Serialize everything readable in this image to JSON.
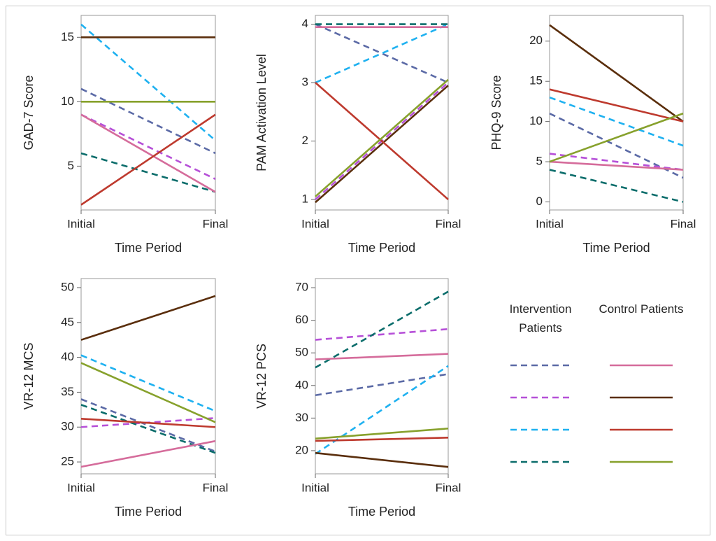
{
  "chart_data": [
    {
      "type": "line",
      "ylabel": "GAD-7 Score",
      "xlabel": "Time Period",
      "categories": [
        "Initial",
        "Final"
      ],
      "ylim": [
        1.6,
        16.7
      ],
      "yticks": [
        5,
        10,
        15
      ],
      "series": [
        {
          "color": "#5b6aa6",
          "dashed": true,
          "values": [
            11,
            6
          ]
        },
        {
          "color": "#b650d8",
          "dashed": true,
          "values": [
            9,
            4
          ]
        },
        {
          "color": "#1fb1f0",
          "dashed": true,
          "values": [
            16,
            7
          ]
        },
        {
          "color": "#0b6d6b",
          "dashed": true,
          "values": [
            6,
            3
          ]
        },
        {
          "color": "#d56c9b",
          "dashed": false,
          "values": [
            9,
            3
          ]
        },
        {
          "color": "#5a2e0c",
          "dashed": false,
          "values": [
            15,
            15
          ]
        },
        {
          "color": "#be3a2e",
          "dashed": false,
          "values": [
            2,
            9
          ]
        },
        {
          "color": "#87a12c",
          "dashed": false,
          "values": [
            10,
            10
          ]
        }
      ]
    },
    {
      "type": "line",
      "ylabel": "PAM Activation Level",
      "xlabel": "Time Period",
      "categories": [
        "Initial",
        "Final"
      ],
      "ylim": [
        0.82,
        4.15
      ],
      "yticks": [
        1,
        2,
        3,
        4
      ],
      "series": [
        {
          "color": "#5b6aa6",
          "dashed": true,
          "values": [
            4,
            3
          ]
        },
        {
          "color": "#b650d8",
          "dashed": true,
          "values": [
            1,
            3
          ]
        },
        {
          "color": "#1fb1f0",
          "dashed": true,
          "values": [
            3,
            4
          ]
        },
        {
          "color": "#0b6d6b",
          "dashed": true,
          "values": [
            4,
            4
          ]
        },
        {
          "color": "#d56c9b",
          "dashed": false,
          "values": [
            3.95,
            3.95
          ]
        },
        {
          "color": "#5a2e0c",
          "dashed": false,
          "values": [
            0.95,
            2.95
          ]
        },
        {
          "color": "#be3a2e",
          "dashed": false,
          "values": [
            3,
            1
          ]
        },
        {
          "color": "#87a12c",
          "dashed": false,
          "values": [
            1.05,
            3.05
          ]
        }
      ]
    },
    {
      "type": "line",
      "ylabel": "PHQ-9 Score",
      "xlabel": "Time Period",
      "categories": [
        "Initial",
        "Final"
      ],
      "ylim": [
        -1,
        23.2
      ],
      "yticks": [
        0,
        5,
        10,
        15,
        20
      ],
      "series": [
        {
          "color": "#5b6aa6",
          "dashed": true,
          "values": [
            11,
            3
          ]
        },
        {
          "color": "#b650d8",
          "dashed": true,
          "values": [
            6,
            4
          ]
        },
        {
          "color": "#1fb1f0",
          "dashed": true,
          "values": [
            13,
            7
          ]
        },
        {
          "color": "#0b6d6b",
          "dashed": true,
          "values": [
            4,
            0
          ]
        },
        {
          "color": "#d56c9b",
          "dashed": false,
          "values": [
            5,
            4
          ]
        },
        {
          "color": "#5a2e0c",
          "dashed": false,
          "values": [
            22,
            10
          ]
        },
        {
          "color": "#be3a2e",
          "dashed": false,
          "values": [
            14,
            10
          ]
        },
        {
          "color": "#87a12c",
          "dashed": false,
          "values": [
            5,
            11
          ]
        }
      ]
    },
    {
      "type": "line",
      "ylabel": "VR-12 MCS",
      "xlabel": "Time Period",
      "categories": [
        "Initial",
        "Final"
      ],
      "ylim": [
        23.3,
        51.3
      ],
      "yticks": [
        25,
        30,
        35,
        40,
        45,
        50
      ],
      "series": [
        {
          "color": "#5b6aa6",
          "dashed": true,
          "values": [
            34,
            26.5
          ]
        },
        {
          "color": "#b650d8",
          "dashed": true,
          "values": [
            30,
            31.3
          ]
        },
        {
          "color": "#1fb1f0",
          "dashed": true,
          "values": [
            40.3,
            32.3
          ]
        },
        {
          "color": "#0b6d6b",
          "dashed": true,
          "values": [
            33.2,
            26.3
          ]
        },
        {
          "color": "#d56c9b",
          "dashed": false,
          "values": [
            24.3,
            28
          ]
        },
        {
          "color": "#5a2e0c",
          "dashed": false,
          "values": [
            42.5,
            48.8
          ]
        },
        {
          "color": "#be3a2e",
          "dashed": false,
          "values": [
            31.2,
            30
          ]
        },
        {
          "color": "#87a12c",
          "dashed": false,
          "values": [
            39.2,
            30.7
          ]
        }
      ]
    },
    {
      "type": "line",
      "ylabel": "VR-12 PCS",
      "xlabel": "Time Period",
      "categories": [
        "Initial",
        "Final"
      ],
      "ylim": [
        12.9,
        72.8
      ],
      "yticks": [
        20,
        30,
        40,
        50,
        60,
        70
      ],
      "series": [
        {
          "color": "#5b6aa6",
          "dashed": true,
          "values": [
            37,
            43.5
          ]
        },
        {
          "color": "#b650d8",
          "dashed": true,
          "values": [
            54,
            57.3
          ]
        },
        {
          "color": "#1fb1f0",
          "dashed": true,
          "values": [
            19,
            46
          ]
        },
        {
          "color": "#0b6d6b",
          "dashed": true,
          "values": [
            45.5,
            68.8
          ]
        },
        {
          "color": "#d56c9b",
          "dashed": false,
          "values": [
            48,
            49.7
          ]
        },
        {
          "color": "#5a2e0c",
          "dashed": false,
          "values": [
            19.3,
            15
          ]
        },
        {
          "color": "#be3a2e",
          "dashed": false,
          "values": [
            23,
            24
          ]
        },
        {
          "color": "#87a12c",
          "dashed": false,
          "values": [
            23.7,
            26.8
          ]
        }
      ]
    }
  ],
  "legend": [
    {
      "title": "Intervention Patients",
      "dashed": true,
      "colors": [
        "#5b6aa6",
        "#b650d8",
        "#1fb1f0",
        "#0b6d6b"
      ]
    },
    {
      "title": "Control Patients",
      "dashed": false,
      "colors": [
        "#d56c9b",
        "#5a2e0c",
        "#be3a2e",
        "#87a12c"
      ]
    }
  ]
}
